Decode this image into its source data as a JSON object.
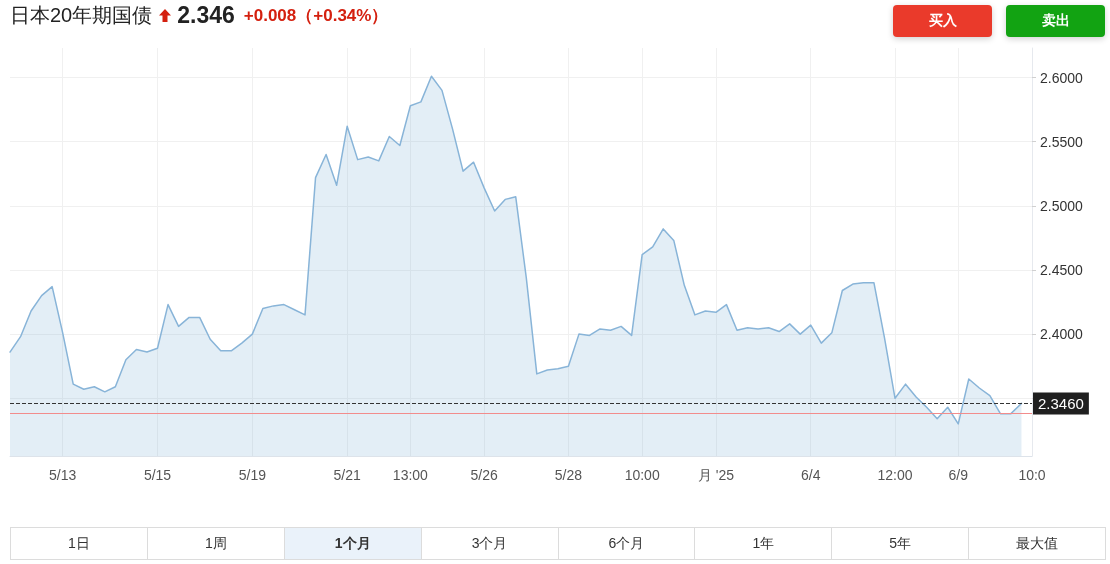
{
  "chart_data": {
    "type": "area",
    "title": "日本20年期国债",
    "subtitle": "2.346",
    "annotations": [
      "+0.008（+0.34%）",
      "买入",
      "卖出",
      "1日",
      "1周",
      "1个月",
      "3个月",
      "6个月",
      "1年",
      "5年",
      "最大值"
    ],
    "categories": [
      null,
      null,
      null,
      null,
      null,
      "5/13",
      null,
      null,
      null,
      null,
      null,
      null,
      null,
      null,
      "5/15",
      null,
      null,
      null,
      null,
      null,
      null,
      null,
      null,
      "5/19",
      null,
      null,
      null,
      null,
      null,
      null,
      null,
      null,
      "5/21",
      null,
      null,
      null,
      null,
      null,
      "13:00",
      null,
      null,
      null,
      null,
      null,
      null,
      "5/26",
      null,
      null,
      null,
      null,
      null,
      null,
      null,
      "5/28",
      null,
      null,
      null,
      null,
      null,
      null,
      "10:00",
      null,
      null,
      null,
      null,
      null,
      null,
      "月 '25",
      null,
      null,
      null,
      null,
      null,
      null,
      null,
      null,
      "6/4",
      null,
      null,
      null,
      null,
      null,
      null,
      null,
      "12:00",
      null,
      null,
      null,
      null,
      null,
      "6/9",
      null,
      null,
      null,
      null,
      null,
      null,
      "10:0"
    ],
    "values": [
      2.386,
      2.398,
      2.418,
      2.43,
      2.437,
      2.401,
      2.361,
      2.357,
      2.359,
      2.355,
      2.359,
      2.38,
      2.388,
      2.386,
      2.389,
      2.423,
      2.406,
      2.413,
      2.413,
      2.396,
      2.387,
      2.387,
      2.393,
      2.4,
      2.42,
      2.422,
      2.423,
      2.419,
      2.415,
      2.522,
      2.54,
      2.516,
      2.562,
      2.536,
      2.538,
      2.535,
      2.554,
      2.547,
      2.578,
      2.581,
      2.601,
      2.59,
      2.56,
      2.527,
      2.534,
      2.514,
      2.496,
      2.505,
      2.507,
      2.444,
      2.369,
      2.372,
      2.373,
      2.375,
      2.4,
      2.399,
      2.404,
      2.403,
      2.406,
      2.399,
      2.462,
      2.468,
      2.482,
      2.473,
      2.438,
      2.415,
      2.418,
      2.417,
      2.423,
      2.403,
      2.405,
      2.404,
      2.405,
      2.402,
      2.408,
      2.4,
      2.407,
      2.393,
      2.401,
      2.434,
      2.439,
      2.44,
      2.44,
      2.397,
      2.35,
      2.361,
      2.351,
      2.343,
      2.334,
      2.343,
      2.33,
      2.365,
      2.358,
      2.352,
      2.338,
      2.338,
      2.346,
      null
    ],
    "color": "#88b4d8",
    "ylim": [
      2.305,
      2.623
    ],
    "yticks": [
      {
        "value": 2.35,
        "label": null
      },
      {
        "value": 2.4,
        "label": "2.4000"
      },
      {
        "value": 2.45,
        "label": "2.4500"
      },
      {
        "value": 2.5,
        "label": "2.5000"
      },
      {
        "value": 2.55,
        "label": "2.5500"
      },
      {
        "value": 2.6,
        "label": "2.6000"
      }
    ],
    "grid": true,
    "marker": "none",
    "line_style": "solid",
    "ref_lines": [
      {
        "axis": "y",
        "value": 2.346,
        "label": "2.3460",
        "color": "#333333",
        "line_style": "dashed"
      },
      {
        "axis": "y",
        "value": 2.338,
        "color": "#f28c8c",
        "line_style": "solid"
      }
    ]
  }
}
